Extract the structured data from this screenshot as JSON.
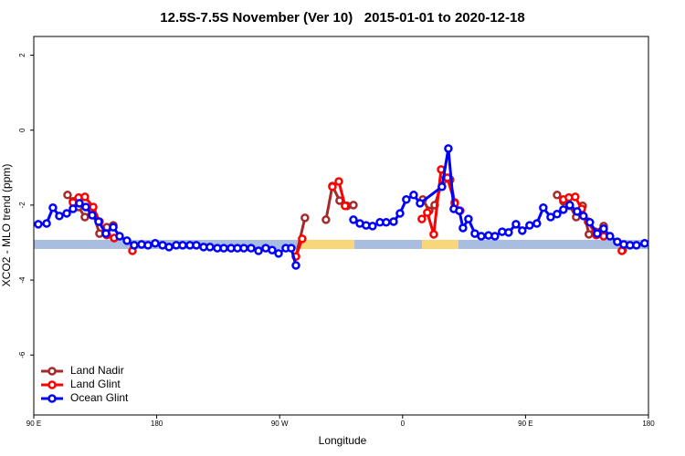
{
  "chart_data": {
    "type": "line",
    "title": "12.5S-7.5S November (Ver 10)   2015-01-01 to 2020-12-18",
    "xlabel": "Longitude",
    "ylabel": "XCO2 - MLO trend (ppm)",
    "xlim": [
      90,
      540
    ],
    "ylim": [
      -7.6,
      2.5
    ],
    "xticks": [
      {
        "value": 90,
        "label": "90 E"
      },
      180,
      {
        "value": 270,
        "label": "90 W"
      },
      {
        "value": 360,
        "label": "0"
      },
      {
        "value": 450,
        "label": "90 E"
      },
      {
        "value": 540,
        "label": "180"
      }
    ],
    "yticks": [
      -6,
      -4,
      -2,
      0,
      2
    ],
    "legend": "bottom-left",
    "series": [
      {
        "name": "Land Nadir",
        "color": "#a52a2a",
        "x": [
          114.7,
          118.7,
          122.8,
          127.4,
          132.8,
          138.1,
          143.5,
          148.2,
          null,
          281.9,
          288.5,
          null,
          303.9,
          308.6,
          313.9,
          319.3,
          324.0,
          null,
          374.8,
          379.5,
          383.5,
          389.5,
          394.8,
          398.2,
          401.5,
          null,
          473.1,
          477.7,
          482.4,
          487.1,
          491.8,
          496.4,
          501.1,
          507.2,
          null,
          521.2
        ],
        "values": [
          -1.73,
          -1.9,
          -2.05,
          -2.32,
          -2.15,
          -2.76,
          -2.59,
          -2.54,
          null,
          -3.37,
          -2.34,
          null,
          -2.39,
          -1.49,
          -1.88,
          -2.02,
          -2.0,
          null,
          -1.85,
          -2.15,
          -2.0,
          -1.34,
          -1.32,
          -1.93,
          -2.15,
          null,
          -1.73,
          -1.9,
          -2.02,
          -2.32,
          -2.02,
          -2.78,
          -2.71,
          -2.56,
          null,
          -3.2
        ]
      },
      {
        "name": "Land Glint",
        "color": "#ff0000",
        "x": [
          118.7,
          122.8,
          127.4,
          133.5,
          138.1,
          143.5,
          148.8,
          null,
          162.2,
          null,
          281.9,
          286.5,
          null,
          308.6,
          313.3,
          317.9,
          null,
          374.1,
          378.1,
          382.8,
          388.2,
          392.8,
          398.2,
          402.2,
          null,
          477.7,
          481.7,
          486.4,
          491.1,
          495.8,
          501.8,
          507.2,
          null,
          520.5
        ],
        "values": [
          -1.93,
          -1.8,
          -1.78,
          -2.05,
          -2.44,
          -2.8,
          -2.88,
          null,
          -3.22,
          null,
          -3.37,
          -2.9,
          null,
          -1.51,
          -1.37,
          -2.02,
          null,
          -2.37,
          -2.2,
          -2.78,
          -1.05,
          -1.27,
          -1.95,
          -2.15,
          null,
          -1.85,
          -1.8,
          -1.78,
          -2.1,
          -2.44,
          -2.8,
          -2.83,
          null,
          -3.22
        ]
      },
      {
        "name": "Ocean Glint",
        "color": "#0000ff",
        "x": [
          93.3,
          99.4,
          104.0,
          108.7,
          114.1,
          118.7,
          123.4,
          128.1,
          132.8,
          137.5,
          142.8,
          148.2,
          152.8,
          158.2,
          163.5,
          168.9,
          173.6,
          178.9,
          184.3,
          189.0,
          194.3,
          199.0,
          204.3,
          209.0,
          214.3,
          219.0,
          224.4,
          229.1,
          234.4,
          239.1,
          243.8,
          249.1,
          254.5,
          259.8,
          264.5,
          269.2,
          274.5,
          278.5,
          281.9,
          null,
          324.0,
          328.7,
          333.3,
          338.0,
          343.4,
          348.0,
          353.4,
          358.1,
          362.7,
          368.1,
          372.8,
          388.8,
          393.5,
          397.5,
          401.5,
          404.2,
          408.2,
          412.9,
          417.6,
          422.9,
          427.6,
          432.9,
          437.6,
          443.0,
          447.6,
          453.0,
          458.3,
          463.0,
          468.4,
          473.1,
          477.7,
          482.4,
          487.8,
          492.4,
          497.1,
          502.5,
          507.2,
          511.8,
          517.2,
          521.9,
          526.5,
          531.2,
          537.2
        ],
        "values": [
          -2.51,
          -2.49,
          -2.07,
          -2.29,
          -2.22,
          -2.1,
          -1.95,
          -2.05,
          -2.27,
          -2.44,
          -2.76,
          -2.59,
          -2.83,
          -2.95,
          -3.07,
          -3.05,
          -3.07,
          -3.02,
          -3.07,
          -3.12,
          -3.07,
          -3.07,
          -3.07,
          -3.07,
          -3.12,
          -3.12,
          -3.15,
          -3.15,
          -3.15,
          -3.15,
          -3.15,
          -3.15,
          -3.22,
          -3.15,
          -3.2,
          -3.29,
          -3.15,
          -3.15,
          -3.61,
          null,
          -2.39,
          -2.49,
          -2.54,
          -2.56,
          -2.46,
          -2.46,
          -2.44,
          -2.22,
          -1.85,
          -1.73,
          -1.95,
          -1.51,
          -0.49,
          -2.1,
          -2.15,
          -2.61,
          -2.37,
          -2.76,
          -2.83,
          -2.81,
          -2.83,
          -2.71,
          -2.73,
          -2.51,
          -2.68,
          -2.54,
          -2.49,
          -2.07,
          -2.32,
          -2.24,
          -2.12,
          -2.0,
          -2.17,
          -2.29,
          -2.46,
          -2.76,
          -2.63,
          -2.83,
          -2.98,
          -3.05,
          -3.07,
          -3.07,
          -3.02
        ]
      }
    ]
  }
}
